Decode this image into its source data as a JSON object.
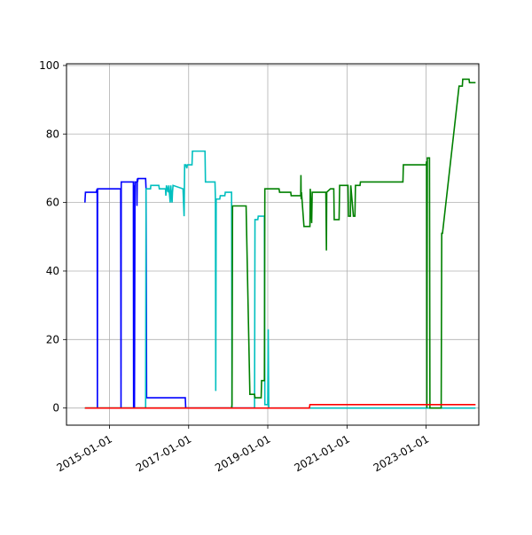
{
  "chart_data": {
    "type": "line",
    "title": "",
    "xlabel": "",
    "ylabel": "",
    "x_axis": {
      "type": "date",
      "range": [
        "2013-12-01",
        "2024-05-01"
      ],
      "ticks": [
        "2015-01-01",
        "2017-01-01",
        "2019-01-01",
        "2021-01-01",
        "2023-01-01"
      ],
      "tick_labels": [
        "2015-01-01",
        "2017-01-01",
        "2019-01-01",
        "2021-01-01",
        "2023-01-01"
      ],
      "tick_rotation": 30
    },
    "y_axis": {
      "range": [
        -5,
        100.5
      ],
      "ticks": [
        0,
        20,
        40,
        60,
        80,
        100
      ],
      "tick_labels": [
        "0",
        "20",
        "40",
        "60",
        "80",
        "100"
      ]
    },
    "grid": true,
    "legend": false,
    "series": [
      {
        "color": "#0000ff",
        "points": [
          [
            "2014-05-20",
            60
          ],
          [
            "2014-05-25",
            63
          ],
          [
            "2014-09-01",
            63
          ],
          [
            "2014-09-10",
            64
          ],
          [
            "2014-09-12",
            0
          ],
          [
            "2014-09-14",
            64
          ],
          [
            "2015-03-15",
            64
          ],
          [
            "2015-04-15",
            64
          ],
          [
            "2015-04-18",
            0
          ],
          [
            "2015-04-20",
            66
          ],
          [
            "2015-08-10",
            66
          ],
          [
            "2015-08-12",
            0
          ],
          [
            "2015-08-14",
            65
          ],
          [
            "2015-08-20",
            0
          ],
          [
            "2015-08-25",
            66
          ],
          [
            "2015-09-10",
            66
          ],
          [
            "2015-09-12",
            59
          ],
          [
            "2015-09-15",
            67
          ],
          [
            "2015-09-18",
            66
          ],
          [
            "2015-09-22",
            67
          ],
          [
            "2015-12-01",
            67
          ],
          [
            "2015-12-05",
            64
          ],
          [
            "2015-12-10",
            3
          ],
          [
            "2016-06-01",
            3
          ],
          [
            "2016-12-01",
            3
          ],
          [
            "2016-12-05",
            0
          ],
          [
            "2018-09-01",
            0
          ]
        ]
      },
      {
        "color": "#00bfbf",
        "points": [
          [
            "2014-05-20",
            0
          ],
          [
            "2015-12-01",
            0
          ],
          [
            "2015-12-05",
            64
          ],
          [
            "2016-01-15",
            64
          ],
          [
            "2016-01-18",
            65
          ],
          [
            "2016-04-01",
            65
          ],
          [
            "2016-04-05",
            64
          ],
          [
            "2016-06-01",
            64
          ],
          [
            "2016-06-05",
            62
          ],
          [
            "2016-06-10",
            65
          ],
          [
            "2016-06-25",
            63
          ],
          [
            "2016-07-01",
            65
          ],
          [
            "2016-07-15",
            60
          ],
          [
            "2016-07-20",
            65
          ],
          [
            "2016-08-01",
            60
          ],
          [
            "2016-08-05",
            63
          ],
          [
            "2016-08-10",
            65
          ],
          [
            "2016-11-10",
            64
          ],
          [
            "2016-11-20",
            56
          ],
          [
            "2016-11-25",
            71
          ],
          [
            "2016-12-05",
            71
          ],
          [
            "2016-12-15",
            70
          ],
          [
            "2016-12-20",
            71
          ],
          [
            "2017-02-01",
            71
          ],
          [
            "2017-02-05",
            75
          ],
          [
            "2017-06-01",
            75
          ],
          [
            "2017-06-05",
            66
          ],
          [
            "2017-09-01",
            66
          ],
          [
            "2017-09-05",
            61
          ],
          [
            "2017-09-08",
            5
          ],
          [
            "2017-09-12",
            61
          ],
          [
            "2017-10-15",
            61
          ],
          [
            "2017-10-20",
            62
          ],
          [
            "2017-12-01",
            62
          ],
          [
            "2017-12-05",
            63
          ],
          [
            "2018-02-01",
            63
          ],
          [
            "2018-02-05",
            0
          ],
          [
            "2018-09-01",
            0
          ],
          [
            "2018-09-05",
            55
          ],
          [
            "2018-10-01",
            55
          ],
          [
            "2018-10-05",
            56
          ],
          [
            "2018-12-01",
            56
          ],
          [
            "2018-12-05",
            1
          ],
          [
            "2019-01-01",
            1
          ],
          [
            "2019-01-05",
            23
          ],
          [
            "2019-01-10",
            0
          ],
          [
            "2024-04-01",
            0
          ]
        ]
      },
      {
        "color": "#008000",
        "points": [
          [
            "2014-05-20",
            0
          ],
          [
            "2018-02-01",
            0
          ],
          [
            "2018-02-05",
            1
          ],
          [
            "2018-02-10",
            59
          ],
          [
            "2018-06-15",
            59
          ],
          [
            "2018-07-20",
            4
          ],
          [
            "2018-09-01",
            4
          ],
          [
            "2018-09-05",
            3
          ],
          [
            "2018-11-01",
            3
          ],
          [
            "2018-11-05",
            8
          ],
          [
            "2018-12-01",
            8
          ],
          [
            "2018-12-05",
            64
          ],
          [
            "2019-04-15",
            64
          ],
          [
            "2019-04-20",
            63
          ],
          [
            "2019-08-01",
            63
          ],
          [
            "2019-08-05",
            62
          ],
          [
            "2019-11-01",
            62
          ],
          [
            "2019-11-03",
            68
          ],
          [
            "2019-11-05",
            61
          ],
          [
            "2019-11-08",
            63
          ],
          [
            "2019-12-01",
            53
          ],
          [
            "2020-01-25",
            53
          ],
          [
            "2020-01-28",
            64
          ],
          [
            "2020-02-10",
            54
          ],
          [
            "2020-02-15",
            63
          ],
          [
            "2020-06-20",
            63
          ],
          [
            "2020-06-25",
            46
          ],
          [
            "2020-06-28",
            63
          ],
          [
            "2020-08-01",
            64
          ],
          [
            "2020-09-01",
            64
          ],
          [
            "2020-09-05",
            55
          ],
          [
            "2020-10-20",
            55
          ],
          [
            "2020-10-25",
            65
          ],
          [
            "2021-01-10",
            65
          ],
          [
            "2021-01-15",
            56
          ],
          [
            "2021-02-01",
            56
          ],
          [
            "2021-02-05",
            65
          ],
          [
            "2021-03-01",
            56
          ],
          [
            "2021-03-15",
            56
          ],
          [
            "2021-03-20",
            65
          ],
          [
            "2021-05-01",
            65
          ],
          [
            "2021-05-05",
            66
          ],
          [
            "2022-06-01",
            66
          ],
          [
            "2022-06-05",
            71
          ],
          [
            "2023-01-01",
            71
          ],
          [
            "2023-01-05",
            72
          ],
          [
            "2023-01-08",
            0
          ],
          [
            "2023-01-12",
            73
          ],
          [
            "2023-02-01",
            73
          ],
          [
            "2023-02-05",
            0
          ],
          [
            "2023-05-20",
            0
          ],
          [
            "2023-05-25",
            51
          ],
          [
            "2023-06-01",
            51
          ],
          [
            "2023-11-01",
            94
          ],
          [
            "2023-12-01",
            94
          ],
          [
            "2023-12-05",
            96
          ],
          [
            "2024-02-01",
            96
          ],
          [
            "2024-02-05",
            95
          ],
          [
            "2024-04-01",
            95
          ]
        ]
      },
      {
        "color": "#ff0000",
        "points": [
          [
            "2014-05-20",
            0
          ],
          [
            "2020-01-20",
            0
          ],
          [
            "2020-01-25",
            1
          ],
          [
            "2024-04-01",
            1
          ]
        ]
      }
    ]
  }
}
